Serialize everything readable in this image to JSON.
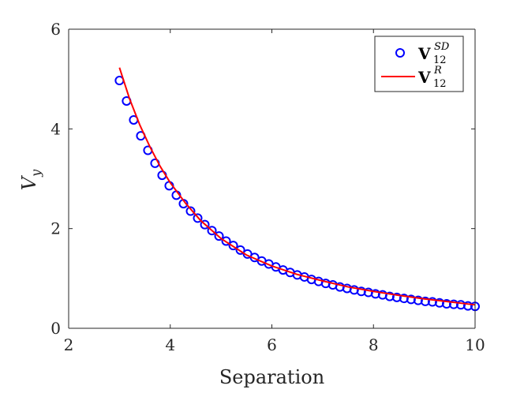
{
  "chart_data": {
    "type": "line",
    "xlabel": "Separation",
    "ylabel": {
      "base": "V",
      "sub": "y"
    },
    "xlim": [
      2,
      10
    ],
    "ylim": [
      0,
      6
    ],
    "xticks": [
      2,
      4,
      6,
      8,
      10
    ],
    "yticks": [
      0,
      2,
      4,
      6
    ],
    "grid": false,
    "legend_position": "top-right",
    "series": [
      {
        "name": "V12^SD",
        "legend": {
          "main": "V",
          "sub": "12",
          "sup": "SD"
        },
        "style": "markers",
        "color": "#0000ff",
        "x": [
          3.0,
          3.14,
          3.28,
          3.42,
          3.56,
          3.7,
          3.84,
          3.98,
          4.12,
          4.26,
          4.4,
          4.54,
          4.68,
          4.82,
          4.96,
          5.1,
          5.24,
          5.38,
          5.52,
          5.66,
          5.8,
          5.94,
          6.08,
          6.22,
          6.36,
          6.5,
          6.64,
          6.78,
          6.92,
          7.06,
          7.2,
          7.34,
          7.48,
          7.62,
          7.76,
          7.9,
          8.04,
          8.18,
          8.32,
          8.46,
          8.6,
          8.74,
          8.88,
          9.02,
          9.16,
          9.3,
          9.44,
          9.58,
          9.72,
          9.86,
          10.0
        ],
        "y": [
          4.97,
          4.56,
          4.18,
          3.86,
          3.57,
          3.31,
          3.07,
          2.86,
          2.67,
          2.5,
          2.35,
          2.21,
          2.08,
          1.96,
          1.85,
          1.75,
          1.66,
          1.57,
          1.49,
          1.42,
          1.35,
          1.29,
          1.23,
          1.17,
          1.12,
          1.07,
          1.03,
          0.98,
          0.94,
          0.9,
          0.87,
          0.83,
          0.8,
          0.77,
          0.74,
          0.72,
          0.69,
          0.67,
          0.64,
          0.62,
          0.6,
          0.58,
          0.56,
          0.54,
          0.53,
          0.51,
          0.49,
          0.48,
          0.47,
          0.45,
          0.44
        ]
      },
      {
        "name": "V12^R",
        "legend": {
          "main": "V",
          "sub": "12",
          "sup": "R"
        },
        "style": "line",
        "color": "#ff0000",
        "x": [
          3.0,
          3.2,
          3.4,
          3.6,
          3.8,
          4.0,
          4.3,
          4.6,
          5.0,
          5.5,
          6.0,
          6.5,
          7.0,
          7.5,
          8.0,
          8.5,
          9.0,
          9.5,
          10.0
        ],
        "y": [
          5.23,
          4.6,
          4.08,
          3.64,
          3.25,
          2.92,
          2.51,
          2.16,
          1.8,
          1.47,
          1.25,
          1.08,
          0.95,
          0.83,
          0.74,
          0.66,
          0.59,
          0.53,
          0.47
        ]
      }
    ]
  }
}
